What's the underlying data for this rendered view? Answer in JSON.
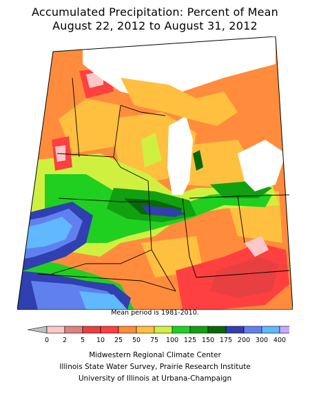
{
  "title": {
    "line1": "Accumulated Precipitation: Percent of Mean",
    "line2": "August 22, 2012 to August 31, 2012"
  },
  "note": "Mean period is 1981-2010.",
  "legend": {
    "labels": [
      "0",
      "2",
      "5",
      "10",
      "25",
      "50",
      "75",
      "100",
      "125",
      "150",
      "175",
      "200",
      "300",
      "400"
    ],
    "colors": [
      "#ffc8c8",
      "#e08080",
      "#e84040",
      "#ff4040",
      "#ff8c3c",
      "#ffc040",
      "#d0f040",
      "#20d020",
      "#10a010",
      "#086808",
      "#3040b0",
      "#6080f0",
      "#60b8ff",
      "#c8a8ff"
    ],
    "below_arrow_color": "#c0c0c0"
  },
  "map_colors": {
    "water": "#ffffff",
    "outside": "#ffffff",
    "border": "#000000"
  },
  "credits": {
    "line1": "Midwestern Regional Climate Center",
    "line2": "Illinois State Water Survey, Prairie Research Institute",
    "line3": "University of Illinois at Urbana-Champaign"
  }
}
